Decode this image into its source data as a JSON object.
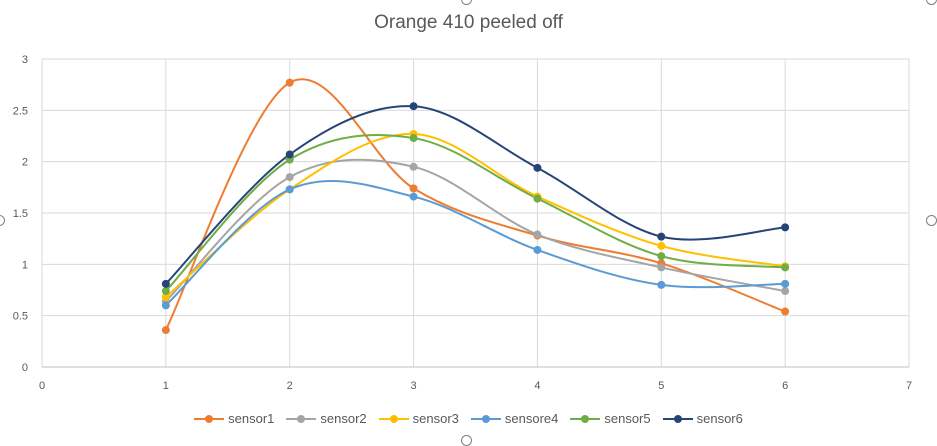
{
  "chart_data": {
    "type": "scatter",
    "title": "Orange 410 peeled off",
    "xlabel": "",
    "ylabel": "",
    "xlim": [
      0,
      7
    ],
    "ylim": [
      0,
      3
    ],
    "x_ticks": [
      "0",
      "1",
      "2",
      "3",
      "4",
      "5",
      "6",
      "7"
    ],
    "y_ticks": [
      "0",
      "0.5",
      "1",
      "1.5",
      "2",
      "2.5",
      "3"
    ],
    "grid": true,
    "smooth_lines": true,
    "legend_position": "bottom",
    "x": [
      1,
      2,
      3,
      4,
      5,
      6
    ],
    "series": [
      {
        "name": "sensor1",
        "color": "#ED7D31",
        "values": [
          0.36,
          2.77,
          1.74,
          1.28,
          1.01,
          0.54
        ]
      },
      {
        "name": "sensor2",
        "color": "#A5A5A5",
        "values": [
          0.64,
          1.85,
          1.95,
          1.29,
          0.97,
          0.74
        ]
      },
      {
        "name": "sensor3",
        "color": "#FFC000",
        "values": [
          0.68,
          1.73,
          2.27,
          1.66,
          1.18,
          0.98
        ]
      },
      {
        "name": "sensore4",
        "color": "#5B9BD5",
        "values": [
          0.6,
          1.73,
          1.66,
          1.14,
          0.8,
          0.81
        ]
      },
      {
        "name": "sensor5",
        "color": "#70AD47",
        "values": [
          0.74,
          2.02,
          2.23,
          1.64,
          1.08,
          0.97
        ]
      },
      {
        "name": "sensor6",
        "color": "#264478",
        "values": [
          0.81,
          2.07,
          2.54,
          1.94,
          1.27,
          1.36
        ]
      }
    ]
  }
}
